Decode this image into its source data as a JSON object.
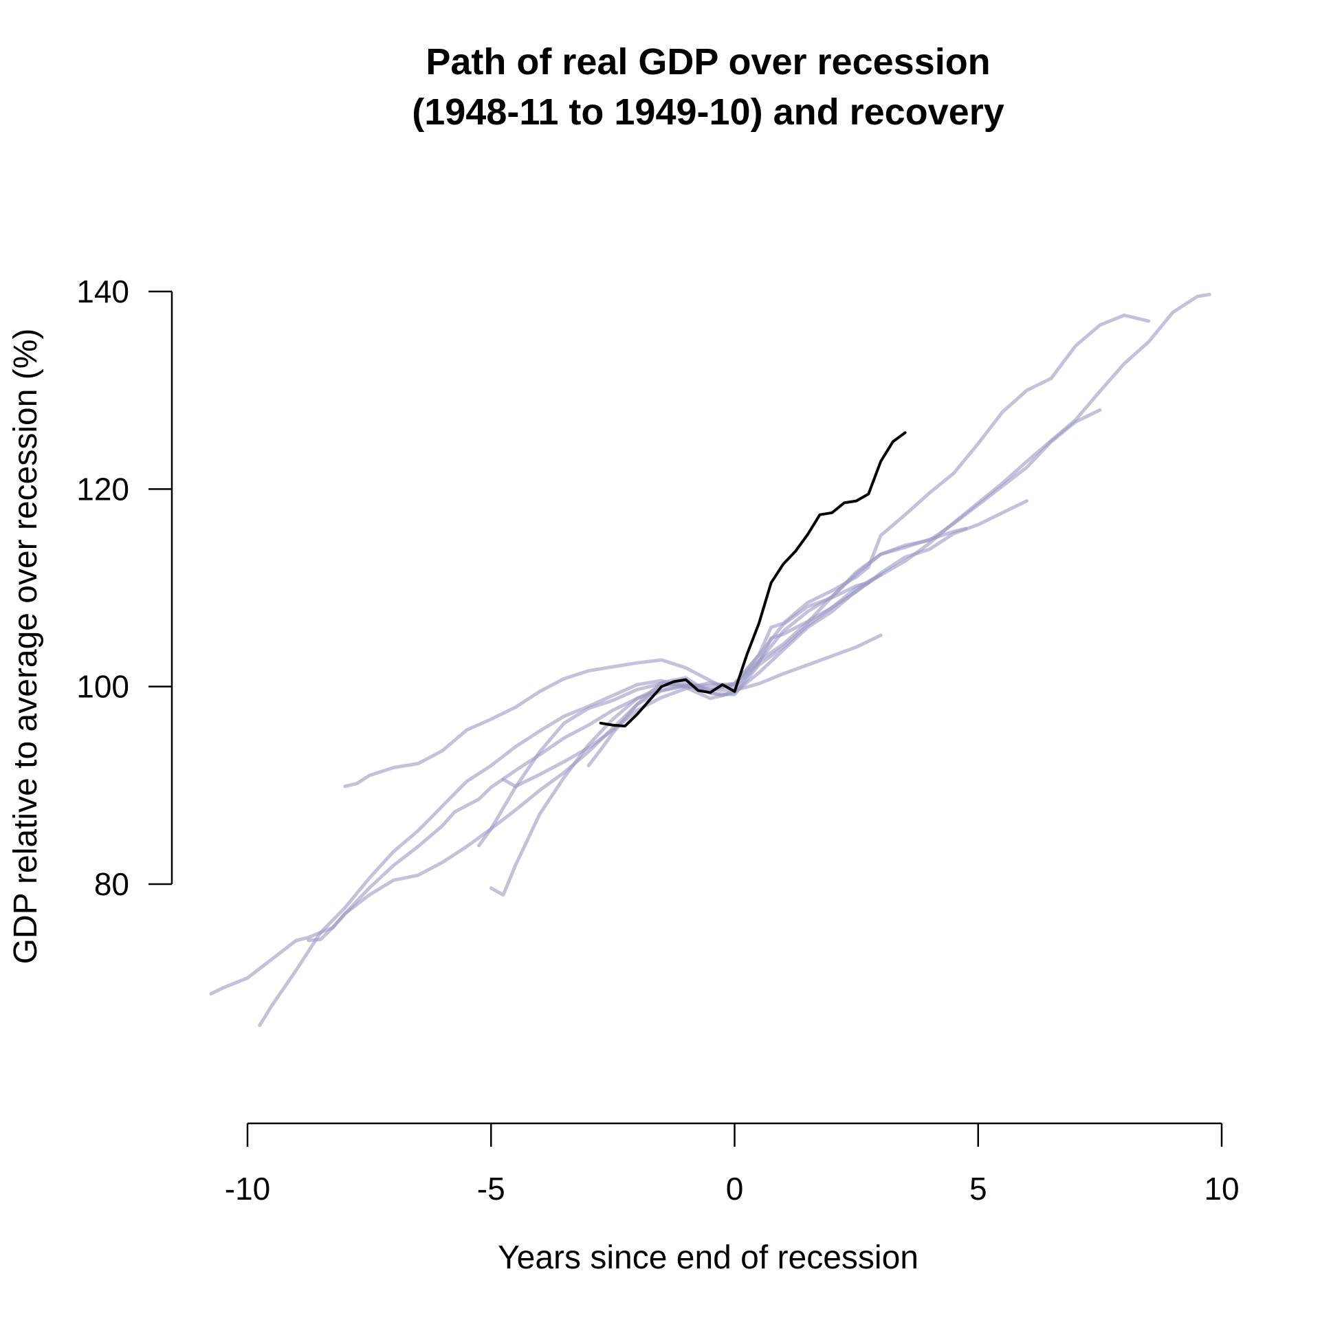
{
  "chart_data": {
    "type": "line",
    "title": [
      "Path of real GDP over recession",
      "(1948-11 to 1949-10) and recovery"
    ],
    "xlabel": "Years since end of recession",
    "ylabel": "GDP relative to average over recession (%)",
    "xlim": [
      -10,
      10
    ],
    "ylim": [
      80,
      140
    ],
    "xticks": [
      -10,
      -5,
      0,
      5,
      10
    ],
    "yticks": [
      80,
      100,
      120,
      140
    ],
    "grid": false,
    "legend": "none",
    "colors": {
      "highlight": "#000000",
      "other": "#9a9ac4"
    },
    "highlight_series": {
      "points": [
        [
          -2.75,
          96.3
        ],
        [
          -2.5,
          96.1
        ],
        [
          -2.25,
          96.0
        ],
        [
          -2.0,
          97.2
        ],
        [
          -1.75,
          98.6
        ],
        [
          -1.5,
          100.0
        ],
        [
          -1.25,
          100.5
        ],
        [
          -1.0,
          100.7
        ],
        [
          -0.75,
          99.6
        ],
        [
          -0.5,
          99.4
        ],
        [
          -0.25,
          100.2
        ],
        [
          0.0,
          99.5
        ],
        [
          0.25,
          103.2
        ],
        [
          0.5,
          106.4
        ],
        [
          0.75,
          110.5
        ],
        [
          1.0,
          112.4
        ],
        [
          1.25,
          113.7
        ],
        [
          1.5,
          115.4
        ],
        [
          1.75,
          117.4
        ],
        [
          2.0,
          117.6
        ],
        [
          2.25,
          118.6
        ],
        [
          2.5,
          118.8
        ],
        [
          2.75,
          119.5
        ],
        [
          3.0,
          122.8
        ],
        [
          3.25,
          124.8
        ],
        [
          3.5,
          125.7
        ]
      ]
    },
    "other_series": [
      {
        "points": [
          [
            -10.75,
            68.9
          ],
          [
            -10.5,
            69.5
          ],
          [
            -10.0,
            70.5
          ],
          [
            -9.5,
            72.4
          ],
          [
            -9.0,
            74.3
          ],
          [
            -8.75,
            74.6
          ],
          [
            -8.25,
            75.6
          ],
          [
            -8.0,
            77.0
          ],
          [
            -7.5,
            79.6
          ],
          [
            -7.0,
            81.9
          ],
          [
            -6.5,
            83.8
          ],
          [
            -6.0,
            85.9
          ],
          [
            -5.75,
            87.3
          ],
          [
            -5.25,
            88.6
          ],
          [
            -5.0,
            89.8
          ],
          [
            -4.5,
            91.5
          ],
          [
            -4.0,
            93.1
          ],
          [
            -3.5,
            94.8
          ],
          [
            -3.0,
            96.1
          ],
          [
            -2.5,
            97.6
          ],
          [
            -2.0,
            98.8
          ],
          [
            -1.5,
            99.6
          ],
          [
            -1.0,
            100.1
          ],
          [
            -0.5,
            99.4
          ],
          [
            -0.25,
            99.1
          ],
          [
            0.0,
            99.6
          ],
          [
            0.5,
            100.3
          ],
          [
            1.0,
            101.3
          ],
          [
            1.5,
            102.2
          ],
          [
            2.0,
            103.1
          ],
          [
            2.5,
            104.0
          ],
          [
            3.0,
            105.2
          ]
        ]
      },
      {
        "points": [
          [
            -8.75,
            74.3
          ],
          [
            -8.5,
            74.4
          ],
          [
            -8.25,
            75.6
          ],
          [
            -8.0,
            77.0
          ],
          [
            -7.5,
            78.9
          ],
          [
            -7.0,
            80.4
          ],
          [
            -6.5,
            80.9
          ],
          [
            -6.0,
            82.2
          ],
          [
            -5.5,
            83.8
          ],
          [
            -5.0,
            85.6
          ],
          [
            -4.5,
            87.5
          ],
          [
            -4.0,
            89.5
          ],
          [
            -3.5,
            91.3
          ],
          [
            -3.0,
            93.4
          ],
          [
            -2.5,
            95.8
          ],
          [
            -2.0,
            98.2
          ],
          [
            -1.5,
            100.4
          ],
          [
            -1.0,
            100.9
          ],
          [
            -0.5,
            99.3
          ],
          [
            0.0,
            99.2
          ],
          [
            0.5,
            102.2
          ],
          [
            1.0,
            104.0
          ],
          [
            1.5,
            106.2
          ],
          [
            2.0,
            108.0
          ],
          [
            2.5,
            109.6
          ],
          [
            3.0,
            111.5
          ],
          [
            3.5,
            113.1
          ],
          [
            4.0,
            113.9
          ],
          [
            4.5,
            115.5
          ],
          [
            5.0,
            116.4
          ],
          [
            5.5,
            117.6
          ],
          [
            6.0,
            118.8
          ]
        ]
      },
      {
        "points": [
          [
            -8.0,
            89.9
          ],
          [
            -7.75,
            90.2
          ],
          [
            -7.5,
            91.0
          ],
          [
            -7.0,
            91.8
          ],
          [
            -6.5,
            92.2
          ],
          [
            -6.0,
            93.5
          ],
          [
            -5.5,
            95.6
          ],
          [
            -5.0,
            96.7
          ],
          [
            -4.5,
            97.9
          ],
          [
            -4.0,
            99.5
          ],
          [
            -3.5,
            100.8
          ],
          [
            -3.0,
            101.6
          ],
          [
            -2.5,
            102.0
          ],
          [
            -2.0,
            102.4
          ],
          [
            -1.5,
            102.7
          ],
          [
            -1.0,
            101.9
          ],
          [
            -0.5,
            100.6
          ],
          [
            -0.25,
            100.0
          ],
          [
            0.0,
            100.3
          ],
          [
            0.5,
            102.6
          ],
          [
            1.0,
            104.3
          ],
          [
            1.5,
            106.5
          ],
          [
            2.0,
            109.1
          ],
          [
            2.5,
            111.6
          ],
          [
            3.0,
            113.4
          ],
          [
            3.5,
            114.3
          ],
          [
            4.0,
            114.8
          ],
          [
            4.5,
            116.5
          ],
          [
            5.0,
            118.4
          ],
          [
            5.5,
            120.3
          ],
          [
            6.0,
            122.2
          ],
          [
            6.5,
            124.8
          ],
          [
            7.0,
            126.8
          ],
          [
            7.5,
            128.0
          ]
        ]
      },
      {
        "points": [
          [
            -9.75,
            65.7
          ],
          [
            -9.5,
            67.7
          ],
          [
            -9.0,
            71.3
          ],
          [
            -8.5,
            75.1
          ],
          [
            -8.0,
            77.6
          ],
          [
            -7.5,
            80.6
          ],
          [
            -7.0,
            83.3
          ],
          [
            -6.5,
            85.4
          ],
          [
            -6.0,
            87.9
          ],
          [
            -5.5,
            90.4
          ],
          [
            -5.0,
            92.0
          ],
          [
            -4.5,
            93.9
          ],
          [
            -4.0,
            95.5
          ],
          [
            -3.5,
            97.0
          ],
          [
            -3.0,
            98.0
          ],
          [
            -2.5,
            99.1
          ],
          [
            -2.0,
            100.2
          ],
          [
            -1.5,
            100.6
          ],
          [
            -1.0,
            99.9
          ],
          [
            -0.5,
            98.8
          ],
          [
            0.0,
            99.4
          ],
          [
            0.5,
            101.4
          ],
          [
            1.0,
            103.7
          ],
          [
            1.5,
            106.0
          ],
          [
            2.0,
            107.6
          ],
          [
            2.5,
            109.7
          ],
          [
            3.0,
            111.3
          ],
          [
            3.5,
            112.7
          ],
          [
            4.0,
            114.5
          ],
          [
            4.5,
            116.6
          ],
          [
            5.0,
            118.6
          ],
          [
            5.5,
            120.6
          ],
          [
            6.0,
            122.8
          ],
          [
            6.5,
            124.9
          ],
          [
            7.0,
            127.0
          ],
          [
            7.5,
            129.9
          ],
          [
            8.0,
            132.7
          ],
          [
            8.5,
            134.9
          ],
          [
            9.0,
            137.9
          ],
          [
            9.5,
            139.5
          ],
          [
            9.75,
            139.7
          ]
        ]
      },
      {
        "points": [
          [
            -5.25,
            83.9
          ],
          [
            -5.0,
            85.6
          ],
          [
            -4.5,
            89.8
          ],
          [
            -4.0,
            93.4
          ],
          [
            -3.5,
            96.3
          ],
          [
            -3.0,
            97.8
          ],
          [
            -2.5,
            98.6
          ],
          [
            -2.0,
            99.7
          ],
          [
            -1.5,
            100.3
          ],
          [
            -1.0,
            100.1
          ],
          [
            -0.5,
            99.7
          ],
          [
            0.0,
            100.2
          ],
          [
            0.5,
            103.2
          ],
          [
            0.75,
            106.0
          ],
          [
            1.0,
            106.4
          ],
          [
            1.5,
            108.5
          ],
          [
            2.0,
            109.7
          ],
          [
            2.5,
            111.1
          ],
          [
            2.75,
            112.1
          ],
          [
            3.0,
            115.3
          ],
          [
            3.5,
            117.4
          ],
          [
            4.0,
            119.6
          ],
          [
            4.5,
            121.6
          ],
          [
            5.0,
            124.6
          ],
          [
            5.5,
            127.8
          ],
          [
            6.0,
            130.0
          ],
          [
            6.5,
            131.2
          ],
          [
            7.0,
            134.5
          ],
          [
            7.5,
            136.6
          ],
          [
            8.0,
            137.6
          ],
          [
            8.5,
            137.0
          ]
        ]
      },
      {
        "points": [
          [
            -4.75,
            90.6
          ],
          [
            -4.5,
            89.9
          ],
          [
            -4.0,
            91.1
          ],
          [
            -3.5,
            92.4
          ],
          [
            -3.0,
            93.8
          ],
          [
            -2.5,
            95.6
          ],
          [
            -2.0,
            97.6
          ],
          [
            -1.5,
            98.9
          ],
          [
            -1.0,
            99.8
          ],
          [
            -0.5,
            100.4
          ],
          [
            0.0,
            99.9
          ],
          [
            0.5,
            102.6
          ],
          [
            1.0,
            105.6
          ],
          [
            1.5,
            107.6
          ],
          [
            2.0,
            109.1
          ],
          [
            2.5,
            111.4
          ],
          [
            3.0,
            113.4
          ],
          [
            3.5,
            114.1
          ],
          [
            4.0,
            114.9
          ],
          [
            4.5,
            115.7
          ],
          [
            4.75,
            116.0
          ]
        ]
      },
      {
        "points": [
          [
            -5.0,
            79.6
          ],
          [
            -4.75,
            78.9
          ],
          [
            -4.5,
            81.9
          ],
          [
            -4.0,
            87.1
          ],
          [
            -3.5,
            90.8
          ],
          [
            -3.0,
            94.1
          ],
          [
            -2.5,
            96.7
          ],
          [
            -2.0,
            98.8
          ],
          [
            -1.5,
            100.0
          ],
          [
            -1.0,
            100.4
          ],
          [
            -0.5,
            99.7
          ],
          [
            0.0,
            99.6
          ],
          [
            0.5,
            102.4
          ],
          [
            0.75,
            104.9
          ],
          [
            1.0,
            105.3
          ],
          [
            1.5,
            106.6
          ],
          [
            2.0,
            108.0
          ],
          [
            2.5,
            110.0
          ],
          [
            3.0,
            111.3
          ]
        ]
      },
      {
        "points": [
          [
            -3.0,
            92.0
          ],
          [
            -2.75,
            93.6
          ],
          [
            -2.5,
            95.3
          ],
          [
            -2.0,
            98.2
          ],
          [
            -1.5,
            99.6
          ],
          [
            -1.0,
            100.1
          ],
          [
            -0.5,
            100.1
          ],
          [
            0.0,
            100.3
          ],
          [
            0.5,
            103.2
          ],
          [
            1.0,
            106.3
          ],
          [
            1.5,
            108.1
          ],
          [
            2.0,
            109.0
          ],
          [
            2.5,
            110.2
          ],
          [
            2.75,
            110.5
          ]
        ]
      }
    ]
  }
}
